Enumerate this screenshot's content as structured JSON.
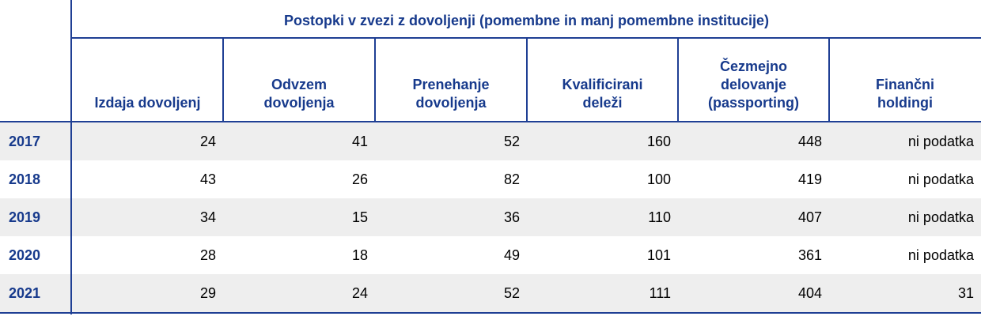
{
  "table": {
    "group_header": "Postopki v zvezi z dovoljenji (pomembne in manj pomembne institucije)",
    "columns": [
      {
        "lines": [
          "Izdaja dovoljenj"
        ]
      },
      {
        "lines": [
          "Odvzem",
          "dovoljenja"
        ]
      },
      {
        "lines": [
          "Prenehanje",
          "dovoljenja"
        ]
      },
      {
        "lines": [
          "Kvalificirani",
          "deleži"
        ]
      },
      {
        "lines": [
          "Čezmejno",
          "delovanje",
          "(passporting)"
        ]
      },
      {
        "lines": [
          "Finančni",
          "holdingi"
        ]
      }
    ],
    "rows": [
      {
        "year": "2017",
        "values": [
          "24",
          "41",
          "52",
          "160",
          "448",
          "ni podatka"
        ]
      },
      {
        "year": "2018",
        "values": [
          "43",
          "26",
          "82",
          "100",
          "419",
          "ni podatka"
        ]
      },
      {
        "year": "2019",
        "values": [
          "34",
          "15",
          "36",
          "110",
          "407",
          "ni podatka"
        ]
      },
      {
        "year": "2020",
        "values": [
          "28",
          "18",
          "49",
          "101",
          "361",
          "ni podatka"
        ]
      },
      {
        "year": "2021",
        "values": [
          "29",
          "24",
          "52",
          "111",
          "404",
          "31"
        ]
      }
    ]
  },
  "colors": {
    "header_text": "#173a8c",
    "rule": "#1f3f94",
    "shaded_row": "#eeeeee"
  }
}
